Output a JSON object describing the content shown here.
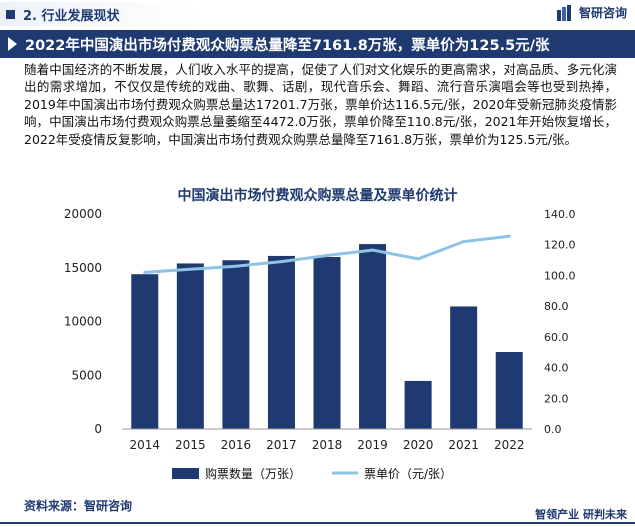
{
  "section": {
    "label": "2. 行业发展现状"
  },
  "brand": {
    "name": "智研咨询"
  },
  "headline": "2022年中国演出市场付费观众购票总量降至7161.8万张，票单价为125.5元/张",
  "paragraph": "随着中国经济的不断发展，人们收入水平的提高，促使了人们对文化娱乐的更高需求，对高品质、多元化演出的需求增加，不仅仅是传统的戏曲、歌舞、话剧，现代音乐会、舞蹈、流行音乐演唱会等也受到热捧，2019年中国演出市场付费观众购票总量达17201.7万张，票单价达116.5元/张，2020年受新冠肺炎疫情影响，中国演出市场付费观众购票总量萎缩至4472.0万张，票单价降至110.8元/张，2021年开始恢复增长，2022年受疫情反复影响，中国演出市场付费观众购票总量降至7161.8万张，票单价为125.5元/张。",
  "source": "资料来源：智研咨询",
  "footer": "智领产业  研判未来",
  "colors": {
    "navy": "#1f3a70",
    "line": "#8ec3e6"
  },
  "chart_data": {
    "type": "bar",
    "title": "中国演出市场付费观众购票总量及票单价统计",
    "categories": [
      "2014",
      "2015",
      "2016",
      "2017",
      "2018",
      "2019",
      "2020",
      "2021",
      "2022"
    ],
    "series": [
      {
        "name": "购票数量（万张）",
        "type": "bar",
        "axis": "left",
        "values": [
          14400,
          15400,
          15700,
          16100,
          16000,
          17201.7,
          4472.0,
          11400,
          7161.8
        ]
      },
      {
        "name": "票单价（元/张）",
        "type": "line",
        "axis": "right",
        "values": [
          102,
          104,
          106,
          109,
          113,
          116.5,
          110.8,
          122,
          125.5
        ]
      }
    ],
    "y_left": {
      "ticks": [
        "0",
        "5000",
        "10000",
        "15000",
        "20000"
      ],
      "ylim": [
        0,
        20000
      ]
    },
    "y_right": {
      "ticks": [
        "0.0",
        "20.0",
        "40.0",
        "60.0",
        "80.0",
        "100.0",
        "120.0",
        "140.0"
      ],
      "ylim": [
        0,
        140
      ]
    },
    "legend_position": "bottom",
    "grid": false
  }
}
